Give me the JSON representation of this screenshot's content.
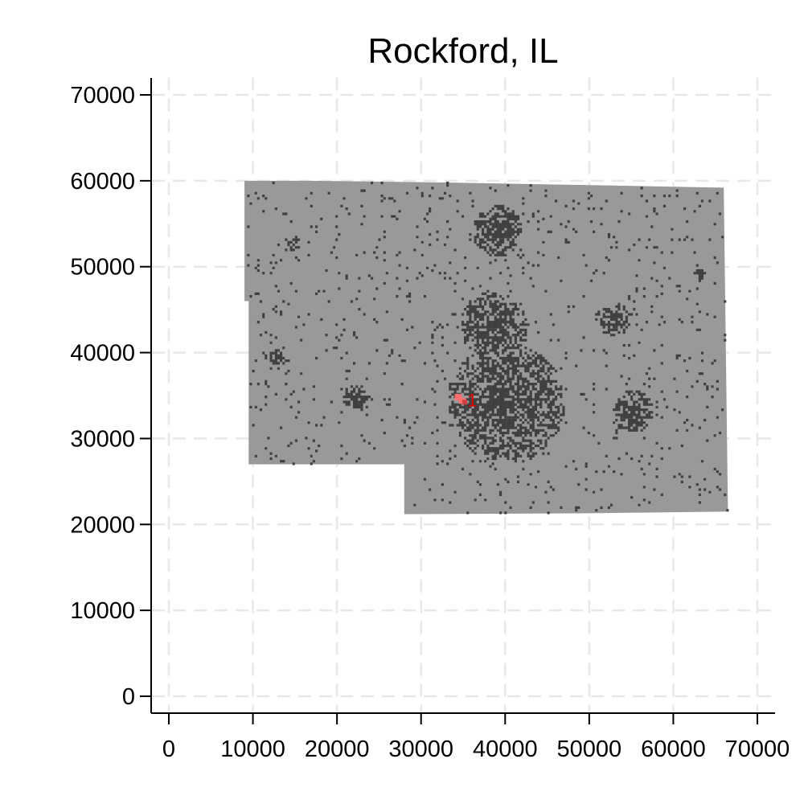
{
  "chart_data": {
    "type": "heatmap",
    "title": "Rockford, IL",
    "xlabel": "",
    "ylabel": "",
    "xlim": [
      -2000,
      72000
    ],
    "ylim": [
      -2000,
      72000
    ],
    "x_ticks": [
      0,
      10000,
      20000,
      30000,
      40000,
      50000,
      60000,
      70000
    ],
    "y_ticks": [
      0,
      10000,
      20000,
      30000,
      40000,
      50000,
      60000,
      70000
    ],
    "grid": true,
    "legend": "none",
    "colors": {
      "background_cells": "#999999",
      "developed_cells": "#404040",
      "highlight_cluster": "#ff7070",
      "annotation": "#e00000"
    },
    "region_outline": [
      [
        9000,
        60000
      ],
      [
        17000,
        60000
      ],
      [
        33000,
        59800
      ],
      [
        50000,
        59500
      ],
      [
        66000,
        59200
      ],
      [
        66500,
        21500
      ],
      [
        50000,
        21300
      ],
      [
        28000,
        21200
      ],
      [
        28000,
        27000
      ],
      [
        9500,
        27000
      ],
      [
        9500,
        46000
      ],
      [
        9000,
        46000
      ]
    ],
    "dense_clusters": [
      {
        "x": 40000,
        "y": 34000,
        "r": 7000
      },
      {
        "x": 38500,
        "y": 43000,
        "r": 4000
      },
      {
        "x": 39000,
        "y": 54000,
        "r": 3000
      },
      {
        "x": 55000,
        "y": 33000,
        "r": 2500
      },
      {
        "x": 53000,
        "y": 43500,
        "r": 1800
      },
      {
        "x": 22000,
        "y": 34500,
        "r": 1500
      },
      {
        "x": 12500,
        "y": 39000,
        "r": 1300
      },
      {
        "x": 14500,
        "y": 52500,
        "r": 1000
      },
      {
        "x": 63000,
        "y": 49000,
        "r": 900
      }
    ],
    "annotations": [
      {
        "label": "1",
        "x": 35500,
        "y": 34500
      }
    ]
  }
}
